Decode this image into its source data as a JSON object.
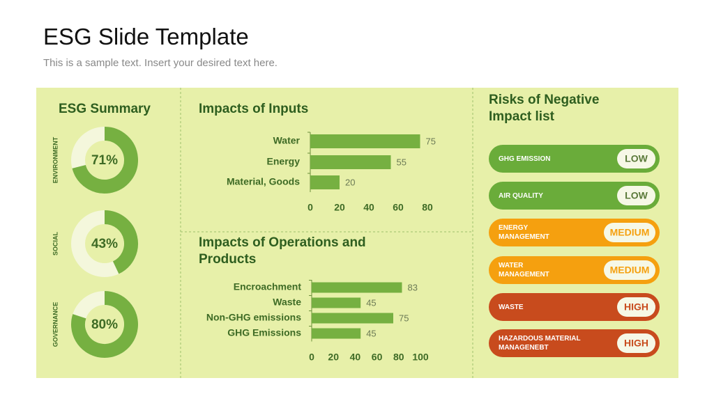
{
  "title": "ESG Slide Template",
  "subtitle": "This is a sample text. Insert your desired text here.",
  "summary_title": "ESG Summary",
  "chart_data": [
    {
      "type": "donut",
      "title": "ENVIRONMENT",
      "values": [
        71
      ],
      "value_labels": [
        "71%"
      ],
      "color": "#76b041"
    },
    {
      "type": "donut",
      "title": "SOCIAL",
      "values": [
        43
      ],
      "value_labels": [
        "43%"
      ],
      "color": "#76b041"
    },
    {
      "type": "donut",
      "title": "GOVERNANCE",
      "values": [
        80
      ],
      "value_labels": [
        "80%"
      ],
      "color": "#76b041"
    },
    {
      "type": "barh",
      "title": "Impacts of Inputs",
      "categories": [
        "Water",
        "Energy",
        "Material, Goods"
      ],
      "values": [
        75,
        55,
        20
      ],
      "xlim": [
        0,
        80
      ],
      "xticks": [
        0,
        20,
        40,
        60,
        80
      ],
      "color": "#76b041"
    },
    {
      "type": "barh",
      "title": "Impacts of Operations and Products",
      "categories": [
        "Encroachment",
        "Waste",
        "Non-GHG emissions",
        "GHG Emissions"
      ],
      "values": [
        83,
        45,
        75,
        45
      ],
      "xlim": [
        0,
        100
      ],
      "xticks": [
        0,
        20,
        40,
        60,
        80,
        100
      ],
      "color": "#76b041"
    }
  ],
  "risks": {
    "title": "Risks of Negative Impact list",
    "items": [
      {
        "label": "GHG EMISSION",
        "level": "LOW",
        "color": "#6aac3a"
      },
      {
        "label": "AIR QUALITY",
        "level": "LOW",
        "color": "#6aac3a"
      },
      {
        "label": "ENERGY MANAGEMENT",
        "level": "MEDIUM",
        "color": "#f5a00f"
      },
      {
        "label": "WATER MANAGEMENT",
        "level": "MEDIUM",
        "color": "#f5a00f"
      },
      {
        "label": "WASTE",
        "level": "HIGH",
        "color": "#c84b1d"
      },
      {
        "label": "HAZARDOUS MATERIAL MANAGENEBT",
        "level": "HIGH",
        "color": "#c84b1d"
      }
    ]
  }
}
